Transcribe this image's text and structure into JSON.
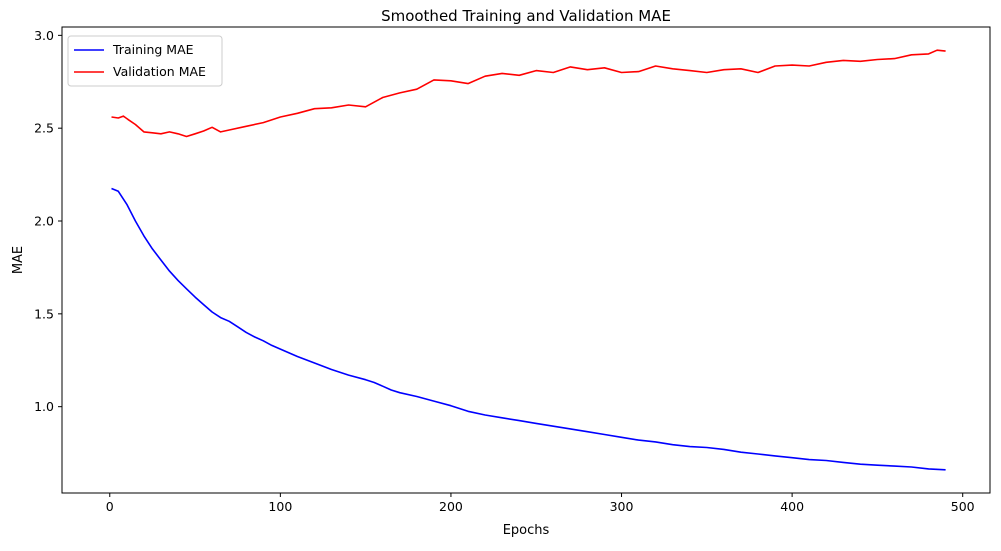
{
  "chart_data": {
    "type": "line",
    "title": "Smoothed Training and Validation MAE",
    "xlabel": "Epochs",
    "ylabel": "MAE",
    "xlim": [
      -28,
      516
    ],
    "ylim": [
      0.535,
      3.045
    ],
    "xticks": [
      0,
      100,
      200,
      300,
      400,
      500
    ],
    "xtick_labels": [
      "0",
      "100",
      "200",
      "300",
      "400",
      "500"
    ],
    "yticks": [
      1.0,
      1.5,
      2.0,
      2.5,
      3.0
    ],
    "ytick_labels": [
      "1.0",
      "1.5",
      "2.0",
      "2.5",
      "3.0"
    ],
    "grid": false,
    "legend_position": "top-left",
    "series": [
      {
        "name": "Training MAE",
        "color": "#0000ff",
        "x": [
          1,
          5,
          10,
          15,
          20,
          25,
          30,
          35,
          40,
          45,
          50,
          55,
          60,
          65,
          70,
          75,
          80,
          85,
          90,
          95,
          100,
          110,
          120,
          130,
          140,
          150,
          155,
          160,
          165,
          170,
          180,
          190,
          200,
          210,
          220,
          230,
          240,
          250,
          260,
          270,
          280,
          290,
          300,
          310,
          320,
          330,
          340,
          350,
          360,
          370,
          380,
          390,
          400,
          410,
          420,
          430,
          440,
          450,
          460,
          470,
          480,
          490
        ],
        "values": [
          2.175,
          2.16,
          2.09,
          2.0,
          1.92,
          1.85,
          1.79,
          1.73,
          1.68,
          1.635,
          1.59,
          1.55,
          1.51,
          1.48,
          1.46,
          1.43,
          1.4,
          1.375,
          1.355,
          1.33,
          1.31,
          1.27,
          1.235,
          1.2,
          1.17,
          1.145,
          1.13,
          1.11,
          1.09,
          1.075,
          1.055,
          1.03,
          1.005,
          0.975,
          0.955,
          0.94,
          0.925,
          0.91,
          0.895,
          0.88,
          0.865,
          0.85,
          0.835,
          0.82,
          0.81,
          0.795,
          0.785,
          0.78,
          0.77,
          0.755,
          0.745,
          0.735,
          0.725,
          0.715,
          0.71,
          0.7,
          0.69,
          0.685,
          0.68,
          0.675,
          0.665,
          0.66
        ]
      },
      {
        "name": "Validation MAE",
        "color": "#ff0000",
        "x": [
          1,
          5,
          8,
          11,
          15,
          20,
          25,
          30,
          35,
          40,
          45,
          50,
          55,
          60,
          65,
          70,
          80,
          90,
          100,
          110,
          120,
          130,
          140,
          150,
          160,
          170,
          180,
          190,
          200,
          210,
          220,
          230,
          240,
          250,
          260,
          270,
          280,
          290,
          300,
          310,
          320,
          330,
          340,
          350,
          360,
          370,
          380,
          390,
          400,
          410,
          420,
          430,
          440,
          450,
          460,
          470,
          480,
          485,
          490
        ],
        "values": [
          2.56,
          2.555,
          2.565,
          2.545,
          2.52,
          2.48,
          2.475,
          2.47,
          2.48,
          2.47,
          2.455,
          2.47,
          2.485,
          2.505,
          2.48,
          2.49,
          2.51,
          2.53,
          2.56,
          2.58,
          2.605,
          2.61,
          2.625,
          2.615,
          2.665,
          2.69,
          2.71,
          2.76,
          2.755,
          2.74,
          2.78,
          2.795,
          2.785,
          2.81,
          2.8,
          2.83,
          2.815,
          2.825,
          2.8,
          2.805,
          2.835,
          2.82,
          2.81,
          2.8,
          2.815,
          2.82,
          2.8,
          2.835,
          2.84,
          2.835,
          2.855,
          2.865,
          2.86,
          2.87,
          2.875,
          2.895,
          2.9,
          2.92,
          2.915
        ]
      }
    ]
  }
}
